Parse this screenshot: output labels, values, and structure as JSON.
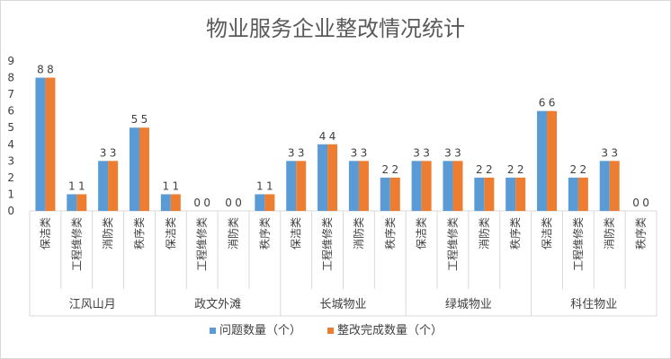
{
  "chart_data": {
    "type": "bar",
    "title": "物业服务企业整改情况统计",
    "ylim": [
      0,
      9
    ],
    "yticks": [
      0,
      1,
      2,
      3,
      4,
      5,
      6,
      7,
      8,
      9
    ],
    "groups": [
      {
        "name": "江风山月",
        "categories": [
          "保洁类",
          "工程维修类",
          "消防类",
          "秩序类"
        ]
      },
      {
        "name": "政文外滩",
        "categories": [
          "保洁类",
          "工程维修类",
          "消防类",
          "秩序类"
        ]
      },
      {
        "name": "长城物业",
        "categories": [
          "保洁类",
          "工程维修类",
          "消防类",
          "秩序类"
        ]
      },
      {
        "name": "绿城物业",
        "categories": [
          "保洁类",
          "工程维修类",
          "消防类",
          "秩序类"
        ]
      },
      {
        "name": "科住物业",
        "categories": [
          "保洁类",
          "工程维修类",
          "消防类",
          "秩序类"
        ]
      }
    ],
    "series": [
      {
        "name": "问题数量（个）",
        "color": "#5B9BD5",
        "values": [
          8,
          1,
          3,
          5,
          1,
          0,
          0,
          1,
          3,
          4,
          3,
          2,
          3,
          3,
          2,
          2,
          6,
          2,
          3,
          0
        ]
      },
      {
        "name": "整改完成数量（个）",
        "color": "#ED7D31",
        "values": [
          8,
          1,
          3,
          5,
          1,
          0,
          0,
          1,
          3,
          4,
          3,
          2,
          3,
          3,
          2,
          2,
          6,
          2,
          3,
          0
        ]
      }
    ],
    "legend_position": "bottom",
    "grid": false
  }
}
